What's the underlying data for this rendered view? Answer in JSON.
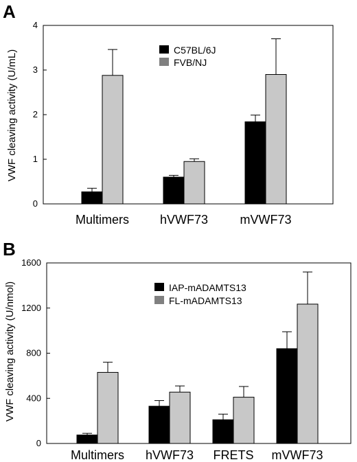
{
  "chart_data": [
    {
      "panel": "A",
      "type": "bar",
      "title": "",
      "xlabel": "",
      "ylabel": "VWF cleaving activity (U/mL)",
      "ylim": [
        0,
        4
      ],
      "yticks": [
        0,
        1,
        2,
        3,
        4
      ],
      "categories": [
        "Multimers",
        "hVWF73",
        "mVWF73"
      ],
      "series": [
        {
          "name": "C57BL/6J",
          "color": "#000000",
          "values": [
            0.27,
            0.6,
            1.84
          ],
          "errors": [
            0.08,
            0.04,
            0.15
          ]
        },
        {
          "name": "FVB/NJ",
          "color": "#c8c8c8",
          "values": [
            2.88,
            0.95,
            2.9
          ],
          "errors": [
            0.58,
            0.06,
            0.8
          ]
        }
      ],
      "legend": "top-right",
      "grid": false
    },
    {
      "panel": "B",
      "type": "bar",
      "title": "",
      "xlabel": "",
      "ylabel": "VWF cleaving activity (U/nmol)",
      "ylim": [
        0,
        1600
      ],
      "yticks": [
        0,
        400,
        800,
        1200,
        1600
      ],
      "categories": [
        "Multimers",
        "hVWF73",
        "FRETS",
        "mVWF73"
      ],
      "series": [
        {
          "name": "IAP-mADAMTS13",
          "color": "#000000",
          "values": [
            75,
            330,
            210,
            840
          ],
          "errors": [
            15,
            50,
            50,
            150
          ]
        },
        {
          "name": "FL-mADAMTS13",
          "color": "#c8c8c8",
          "values": [
            630,
            455,
            410,
            1235
          ],
          "errors": [
            90,
            55,
            95,
            285
          ]
        }
      ],
      "legend": "top-right",
      "grid": false
    }
  ]
}
